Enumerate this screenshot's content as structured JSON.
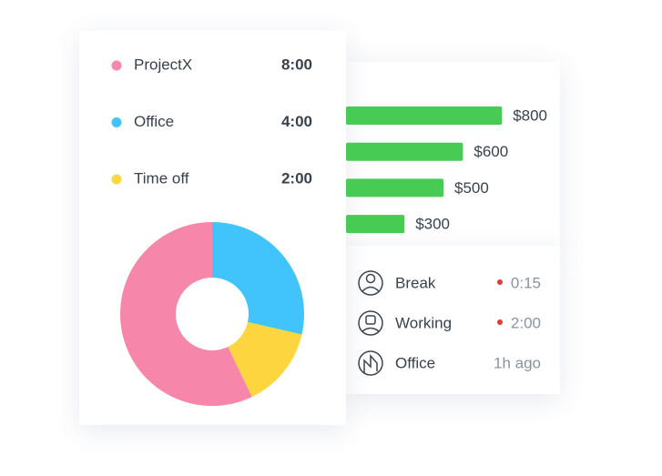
{
  "chart_data": [
    {
      "type": "donut",
      "categories": [
        "ProjectX",
        "Office",
        "Time off"
      ],
      "values": [
        8,
        4,
        2
      ],
      "value_labels": [
        "8:00",
        "4:00",
        "2:00"
      ],
      "colors": [
        "#f786ab",
        "#41c4fb",
        "#fdd63f"
      ]
    },
    {
      "type": "bar",
      "values": [
        800,
        600,
        500,
        300
      ],
      "value_labels": [
        "$800",
        "$600",
        "$500",
        "$300"
      ],
      "color": "#48cb54"
    }
  ],
  "activity": [
    {
      "label": "Break",
      "time": "0:15"
    },
    {
      "label": "Working",
      "time": "2:00"
    },
    {
      "label": "Office",
      "time": "1h ago"
    }
  ]
}
